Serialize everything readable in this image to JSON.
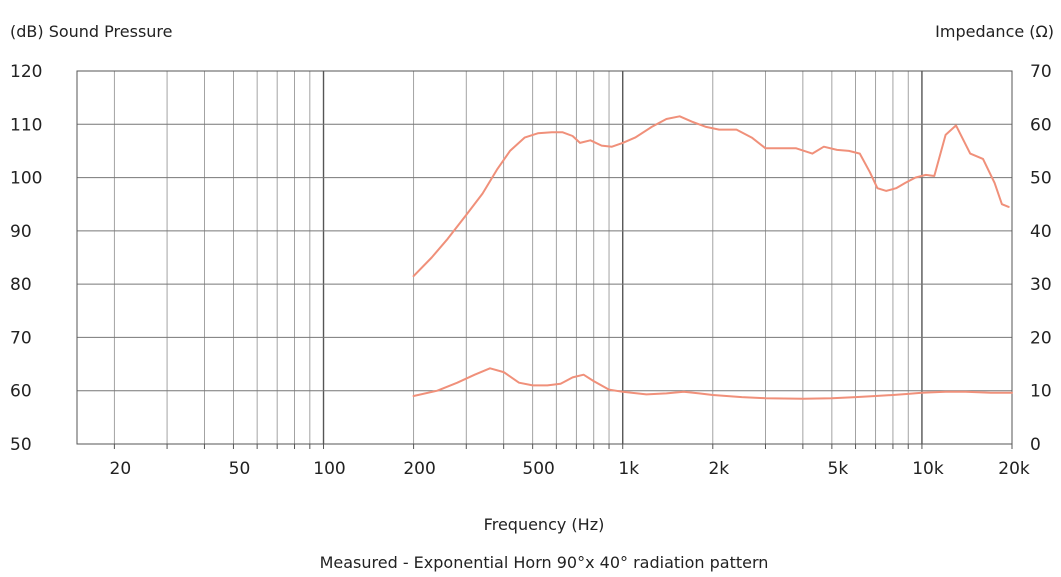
{
  "chart_data": {
    "type": "line",
    "y_left_label": "(dB) Sound Pressure",
    "y_right_label": "Impedance (Ω)",
    "xlabel": "Frequency (Hz)",
    "caption": "Measured - Exponential Horn 90°x 40° radiation pattern",
    "x_scale": "log",
    "xlim": [
      15,
      20000
    ],
    "ylim_left": [
      50,
      120
    ],
    "ylim_right": [
      0,
      70
    ],
    "grid": true,
    "x_ticks": [
      {
        "value": 20,
        "label": "20"
      },
      {
        "value": 50,
        "label": "50"
      },
      {
        "value": 100,
        "label": "100"
      },
      {
        "value": 200,
        "label": "200"
      },
      {
        "value": 500,
        "label": "500"
      },
      {
        "value": 1000,
        "label": "1k"
      },
      {
        "value": 2000,
        "label": "2k"
      },
      {
        "value": 5000,
        "label": "5k"
      },
      {
        "value": 10000,
        "label": "10k"
      },
      {
        "value": 20000,
        "label": "20k"
      }
    ],
    "y_left_ticks": [
      120,
      110,
      100,
      90,
      80,
      70,
      60,
      50
    ],
    "y_right_ticks": [
      70,
      60,
      50,
      40,
      30,
      20,
      10,
      0
    ],
    "line_color": "#f0907a",
    "series": [
      {
        "axis": "left",
        "x": [
          200,
          230,
          260,
          300,
          340,
          380,
          420,
          470,
          520,
          580,
          630,
          680,
          720,
          780,
          850,
          920,
          1000,
          1100,
          1250,
          1400,
          1550,
          1700,
          1900,
          2100,
          2400,
          2700,
          3000,
          3400,
          3800,
          4300,
          4700,
          5200,
          5700,
          6200,
          6700,
          7100,
          7600,
          8200,
          8800,
          9500,
          10300,
          11000,
          12000,
          13000,
          14500,
          16000,
          17500,
          18500,
          19500
        ],
        "y": [
          81.5,
          85,
          88.5,
          93,
          97,
          101.5,
          105,
          107.5,
          108.3,
          108.5,
          108.5,
          107.8,
          106.5,
          107,
          106,
          105.8,
          106.5,
          107.5,
          109.5,
          111,
          111.5,
          110.5,
          109.5,
          109,
          109,
          107.5,
          105.5,
          105.5,
          105.5,
          104.5,
          105.8,
          105.2,
          105,
          104.5,
          101,
          98,
          97.5,
          98,
          99,
          100,
          100.5,
          100.3,
          108,
          109.8,
          104.5,
          103.5,
          99,
          95,
          94.5
        ]
      },
      {
        "axis": "right",
        "x": [
          200,
          240,
          280,
          320,
          360,
          400,
          450,
          500,
          560,
          620,
          680,
          740,
          800,
          900,
          1000,
          1200,
          1400,
          1600,
          1800,
          2000,
          2500,
          3000,
          4000,
          5000,
          6000,
          7000,
          8000,
          9000,
          10000,
          12000,
          14000,
          17000,
          20000
        ],
        "y": [
          9,
          10,
          11.5,
          13,
          14.2,
          13.5,
          11.5,
          11,
          11,
          11.3,
          12.5,
          13,
          11.8,
          10.2,
          9.8,
          9.3,
          9.5,
          9.8,
          9.5,
          9.2,
          8.8,
          8.6,
          8.5,
          8.6,
          8.8,
          9,
          9.2,
          9.4,
          9.6,
          9.8,
          9.8,
          9.6,
          9.6
        ]
      }
    ]
  }
}
